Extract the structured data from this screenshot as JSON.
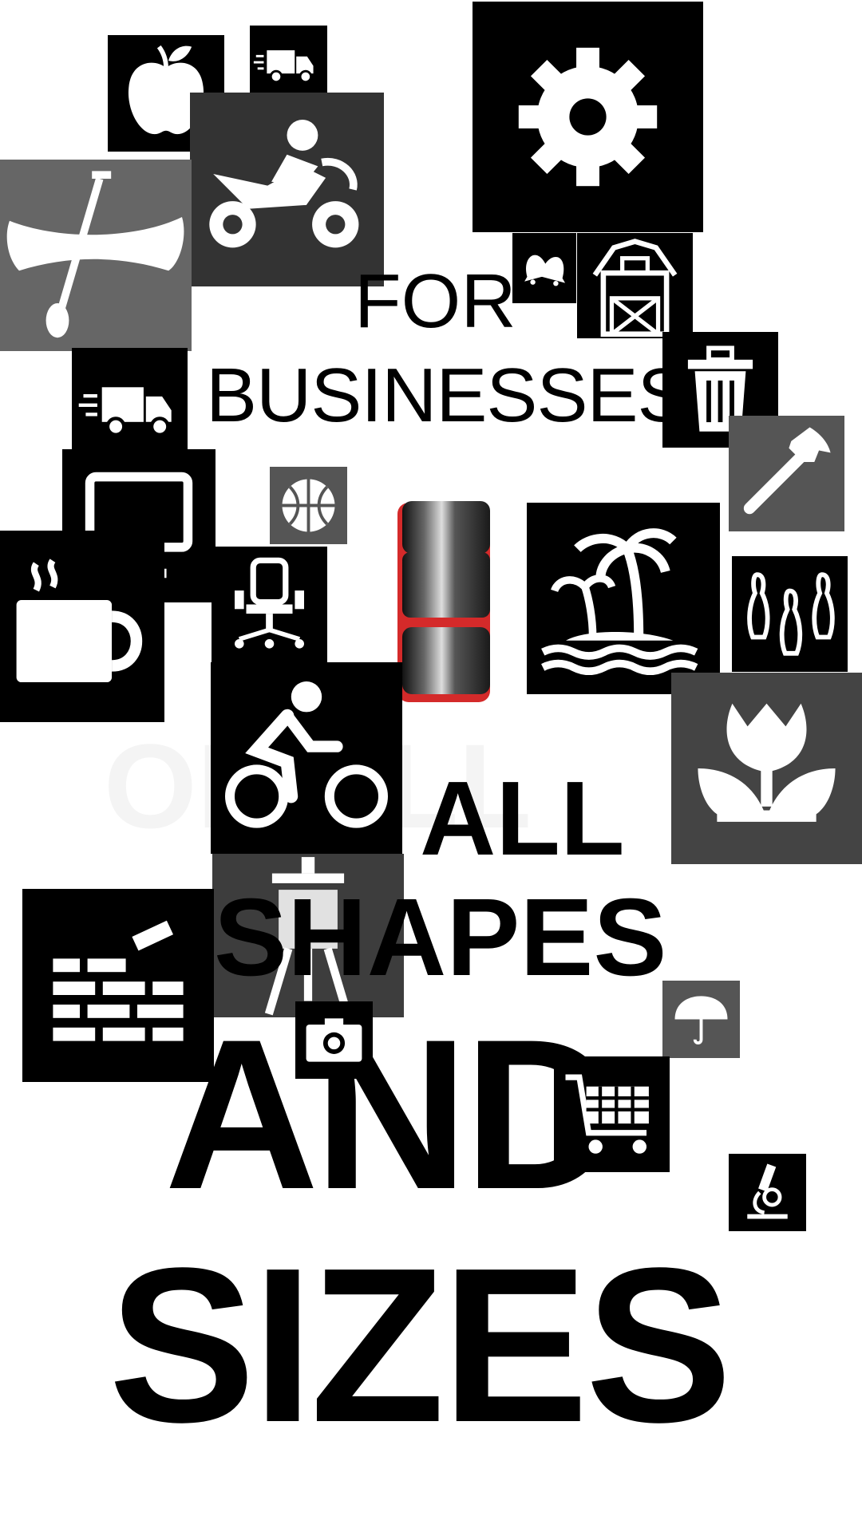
{
  "headline": {
    "line1": "FOR",
    "line2": "BUSINESSES",
    "line3": "ALL",
    "line4": "SHAPES",
    "line5": "AND",
    "line6": "SIZES",
    "ghost_text": "OF ALL"
  },
  "icons": [
    "apple-icon",
    "delivery-truck-icon",
    "gear-icon",
    "motorcycle-icon",
    "canoe-icon",
    "bells-icon",
    "barn-icon",
    "trash-can-icon",
    "delivery-truck-icon",
    "basketball-icon",
    "desktop-monitor-icon",
    "hammer-icon",
    "coffee-mug-icon",
    "office-chair-icon",
    "palm-island-icon",
    "bowling-pins-icon",
    "cyclist-icon",
    "tulip-icon",
    "easel-icon",
    "brick-wall-icon",
    "umbrella-icon",
    "camera-icon",
    "shopping-cart-icon",
    "microscope-icon"
  ],
  "colors": {
    "tile_black": "#000000",
    "tile_dark_gray": "#333333",
    "tile_gray": "#555555",
    "toggle_red": "#d42a2a",
    "background": "#ffffff"
  }
}
